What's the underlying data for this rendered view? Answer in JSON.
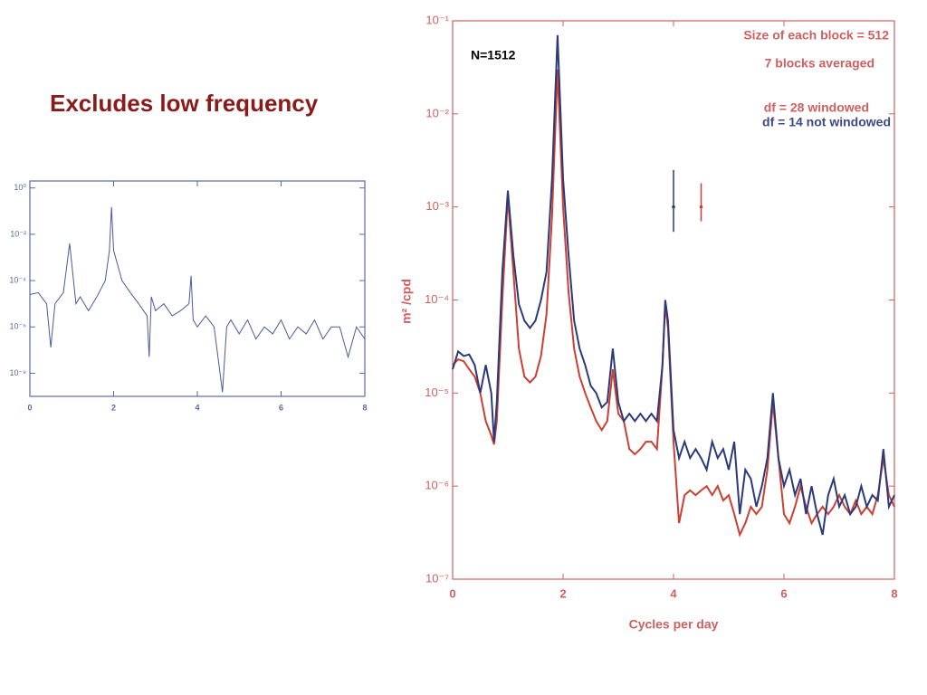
{
  "slide_title": "Excludes low frequency",
  "chart_data": [
    {
      "type": "line",
      "log_y": true,
      "axis_color": "#5a6aa0",
      "x": [
        0,
        0.2,
        0.4,
        0.5,
        0.6,
        0.8,
        0.95,
        1.1,
        1.2,
        1.4,
        1.6,
        1.8,
        1.9,
        1.95,
        2.0,
        2.2,
        2.4,
        2.6,
        2.8,
        2.85,
        2.9,
        3.0,
        3.2,
        3.4,
        3.6,
        3.8,
        3.85,
        3.9,
        4.0,
        4.2,
        4.4,
        4.6,
        4.7,
        4.8,
        5.0,
        5.2,
        5.4,
        5.6,
        5.8,
        6.0,
        6.2,
        6.4,
        6.6,
        6.8,
        7.0,
        7.2,
        7.4,
        7.6,
        7.8,
        8.0
      ],
      "series": [
        {
          "color": "#4a5a9a",
          "values": [
            2.5e-05,
            3e-05,
            1e-05,
            1.3e-07,
            1e-05,
            3e-05,
            0.004,
            1e-05,
            2e-05,
            5e-06,
            2e-05,
            0.0001,
            0.002,
            0.15,
            0.002,
            0.0001,
            3e-05,
            1e-05,
            3e-06,
            5e-08,
            2e-05,
            5e-06,
            1e-05,
            3e-06,
            5e-06,
            1e-05,
            0.00016,
            2e-06,
            1e-06,
            3e-06,
            1e-06,
            1.5e-09,
            1e-06,
            2e-06,
            5e-07,
            2e-06,
            3e-07,
            1e-06,
            5e-07,
            2e-06,
            3e-07,
            1e-06,
            5e-07,
            2e-06,
            3e-07,
            1e-06,
            1e-06,
            5e-08,
            1e-06,
            3e-07
          ]
        }
      ],
      "xlim": [
        0,
        8
      ],
      "xticks": [
        0,
        2,
        4,
        6,
        8
      ],
      "ylim": [
        1e-09,
        2
      ],
      "yticks": [
        {
          "value": 1,
          "label": "10⁰"
        },
        {
          "value": 0.01,
          "label": "10⁻²"
        },
        {
          "value": 0.0001,
          "label": "10⁻⁴"
        },
        {
          "value": 1e-06,
          "label": "10⁻⁶"
        },
        {
          "value": 1e-08,
          "label": "10⁻⁸"
        }
      ]
    },
    {
      "type": "line",
      "log_y": true,
      "axis_color": "#d06060",
      "xlabel": "Cycles per day",
      "ylabel": "m² /cpd",
      "x": [
        0,
        0.1,
        0.2,
        0.3,
        0.4,
        0.5,
        0.6,
        0.7,
        0.75,
        0.8,
        0.9,
        1.0,
        1.1,
        1.2,
        1.3,
        1.4,
        1.5,
        1.6,
        1.7,
        1.8,
        1.9,
        2.0,
        2.1,
        2.2,
        2.3,
        2.4,
        2.5,
        2.6,
        2.7,
        2.8,
        2.9,
        3.0,
        3.1,
        3.2,
        3.3,
        3.4,
        3.5,
        3.6,
        3.7,
        3.8,
        3.85,
        3.9,
        4.0,
        4.1,
        4.2,
        4.3,
        4.4,
        4.5,
        4.6,
        4.7,
        4.8,
        4.9,
        5.0,
        5.1,
        5.2,
        5.3,
        5.4,
        5.5,
        5.6,
        5.7,
        5.8,
        5.9,
        6.0,
        6.1,
        6.2,
        6.3,
        6.4,
        6.5,
        6.6,
        6.7,
        6.8,
        6.9,
        7.0,
        7.1,
        7.2,
        7.3,
        7.4,
        7.5,
        7.6,
        7.7,
        7.8,
        7.9,
        8.0
      ],
      "series": [
        {
          "color": "#cc3f33",
          "values": [
            2e-05,
            2.3e-05,
            2.2e-05,
            1.8e-05,
            1.5e-05,
            1e-05,
            5e-06,
            3.5e-06,
            2.8e-06,
            5e-06,
            0.0001,
            0.0013,
            0.0002,
            3e-05,
            1.5e-05,
            1.3e-05,
            1.5e-05,
            2.5e-05,
            7e-05,
            0.0008,
            0.03,
            0.001,
            0.00012,
            3e-05,
            1.5e-05,
            1e-05,
            7e-06,
            5e-06,
            4e-06,
            5e-06,
            1.8e-05,
            6e-06,
            5e-06,
            2.5e-06,
            2.2e-06,
            2.5e-06,
            3e-06,
            3e-06,
            2.5e-06,
            2e-05,
            9e-05,
            5e-05,
            3e-06,
            4e-07,
            8e-07,
            9e-07,
            8e-07,
            9e-07,
            1e-06,
            8e-07,
            1e-06,
            7e-07,
            8e-07,
            5e-07,
            3e-07,
            4e-07,
            6e-07,
            5e-07,
            6e-07,
            1.5e-06,
            8e-06,
            2e-06,
            5e-07,
            4e-07,
            6e-07,
            1e-06,
            6e-07,
            4e-07,
            5e-07,
            6e-07,
            5e-07,
            6e-07,
            8e-07,
            6e-07,
            5e-07,
            7e-07,
            5e-07,
            6e-07,
            5e-07,
            8e-07,
            2e-06,
            8e-07,
            6e-07
          ]
        },
        {
          "color": "#2b3a78",
          "values": [
            1.8e-05,
            2.8e-05,
            2.5e-05,
            2.6e-05,
            2e-05,
            1e-05,
            2e-05,
            1e-05,
            3e-06,
            8e-06,
            0.0002,
            0.0015,
            0.0003,
            9e-05,
            6e-05,
            5e-05,
            6e-05,
            0.0001,
            0.0002,
            0.002,
            0.07,
            0.002,
            0.0003,
            6e-05,
            3e-05,
            2e-05,
            1.2e-05,
            1e-05,
            7e-06,
            8e-06,
            3e-05,
            8e-06,
            5e-06,
            6e-06,
            5e-06,
            6e-06,
            5e-06,
            6e-06,
            5e-06,
            2e-05,
            0.0001,
            6e-05,
            4e-06,
            2e-06,
            3e-06,
            2e-06,
            2.5e-06,
            2e-06,
            1.5e-06,
            3e-06,
            2e-06,
            2.5e-06,
            1.5e-06,
            3e-06,
            5e-07,
            1.5e-06,
            1.2e-06,
            6e-07,
            1e-06,
            2e-06,
            1e-05,
            2e-06,
            1e-06,
            1.5e-06,
            8e-07,
            1.2e-06,
            5e-07,
            1e-06,
            5e-07,
            3e-07,
            8e-07,
            1.2e-06,
            6e-07,
            8e-07,
            5e-07,
            6e-07,
            1e-06,
            6e-07,
            8e-07,
            7e-07,
            2.5e-06,
            6e-07,
            8e-07
          ]
        }
      ],
      "error_bars": [
        {
          "x": 4,
          "y": 0.001,
          "low": 0.00054,
          "high": 0.0025,
          "color": "#2b3a78"
        },
        {
          "x": 4.5,
          "y": 0.001,
          "low": 0.0007,
          "high": 0.0018,
          "color": "#cc3f33"
        }
      ],
      "annotations": [
        {
          "text": "N=1512",
          "color": "#000000"
        },
        {
          "text": "Size of each block =  512",
          "color": "#d06060"
        },
        {
          "text": "7 blocks averaged",
          "color": "#d06060"
        },
        {
          "text": "df =  28 windowed",
          "color": "#d06060"
        },
        {
          "text": "df = 14 not windowed",
          "color": "#3a4a8a"
        }
      ],
      "xlim": [
        0,
        8
      ],
      "xticks": [
        0,
        2,
        4,
        6,
        8
      ],
      "ylim": [
        1e-07,
        0.1
      ],
      "yticks": [
        {
          "value": 0.1,
          "label": "10⁻¹"
        },
        {
          "value": 0.01,
          "label": "10⁻²"
        },
        {
          "value": 0.001,
          "label": "10⁻³"
        },
        {
          "value": 0.0001,
          "label": "10⁻⁴"
        },
        {
          "value": 1e-05,
          "label": "10⁻⁵"
        },
        {
          "value": 1e-06,
          "label": "10⁻⁶"
        },
        {
          "value": 1e-07,
          "label": "10⁻⁷"
        }
      ]
    }
  ]
}
